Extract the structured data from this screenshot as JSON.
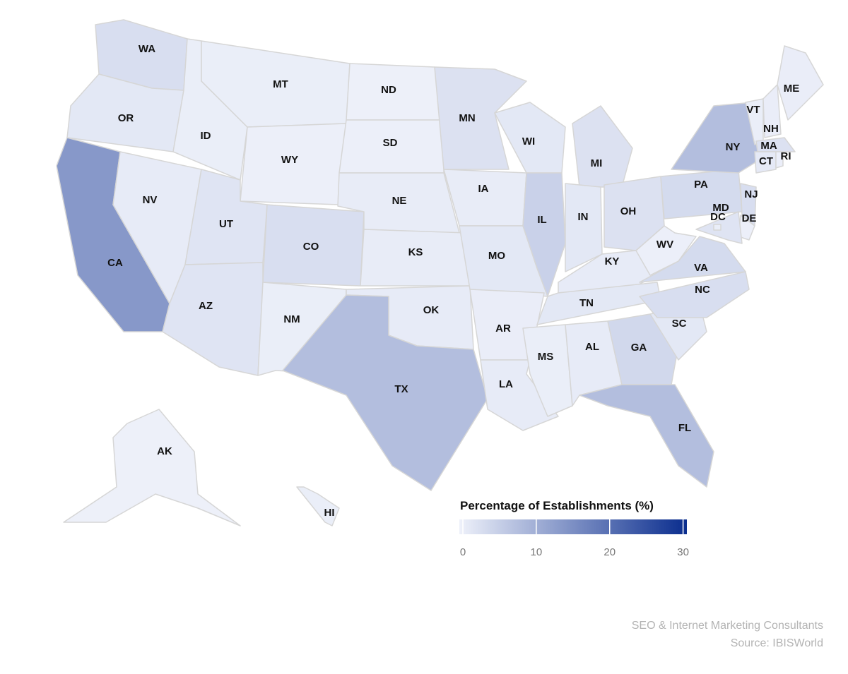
{
  "chart_data": {
    "type": "choropleth",
    "title": "Percentage of Establishments (%)",
    "states": [
      "WA",
      "OR",
      "CA",
      "NV",
      "ID",
      "MT",
      "WY",
      "UT",
      "CO",
      "AZ",
      "NM",
      "ND",
      "SD",
      "NE",
      "KS",
      "OK",
      "TX",
      "MN",
      "IA",
      "MO",
      "AR",
      "LA",
      "WI",
      "IL",
      "MI",
      "IN",
      "OH",
      "KY",
      "TN",
      "MS",
      "AL",
      "GA",
      "FL",
      "SC",
      "NC",
      "VA",
      "WV",
      "PA",
      "NY",
      "NJ",
      "DE",
      "MD",
      "DC",
      "VT",
      "NH",
      "ME",
      "MA",
      "CT",
      "RI",
      "AK",
      "HI"
    ],
    "values": [
      3,
      1.5,
      14,
      1,
      0.5,
      0.5,
      0.3,
      2,
      3,
      2,
      0.5,
      0.2,
      0.3,
      0.8,
      0.8,
      1,
      8,
      2.5,
      0.8,
      1.5,
      0.6,
      1,
      1.5,
      5,
      2.5,
      1.5,
      2.5,
      1,
      1.5,
      0.5,
      1,
      4,
      8,
      1.5,
      3,
      3.5,
      0.3,
      3.5,
      8,
      3,
      0.3,
      2,
      0.5,
      0.5,
      0.6,
      0.6,
      2.5,
      1.2,
      0.4,
      0.2,
      0.5
    ],
    "clim": [
      0,
      31
    ],
    "cticks": [
      0,
      10,
      20,
      30
    ],
    "colors": [
      "#eef1fa",
      "#0a2d8e"
    ]
  },
  "credits": [
    "SEO & Internet Marketing Consultants",
    "Source: IBISWorld"
  ]
}
